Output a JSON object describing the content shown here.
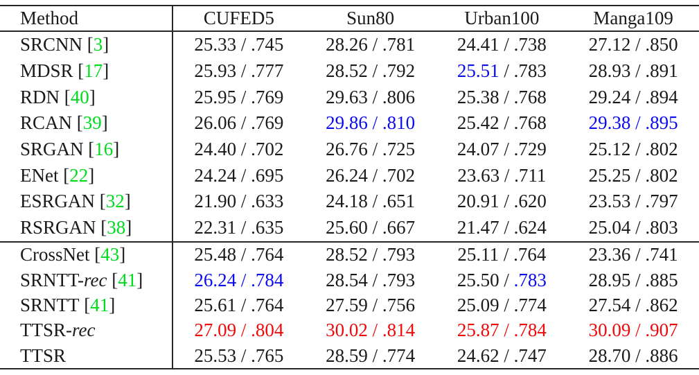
{
  "table": {
    "colors": {
      "black": "#1a1a1a",
      "blue": "#0b0bee",
      "red": "#ee0a0a",
      "green": "#00db1e"
    },
    "header": {
      "method": "Method",
      "datasets": [
        "CUFED5",
        "Sun80",
        "Urban100",
        "Manga109"
      ]
    },
    "sections": [
      {
        "rows": [
          {
            "method": {
              "base": "SRCNN",
              "italic": "",
              "cite": "3"
            },
            "cells": [
              {
                "psnr": "25.33",
                "ssim": ".745",
                "psnr_color": "black",
                "slash_color": "black",
                "ssim_color": "black"
              },
              {
                "psnr": "28.26",
                "ssim": ".781",
                "psnr_color": "black",
                "slash_color": "black",
                "ssim_color": "black"
              },
              {
                "psnr": "24.41",
                "ssim": ".738",
                "psnr_color": "black",
                "slash_color": "black",
                "ssim_color": "black"
              },
              {
                "psnr": "27.12",
                "ssim": ".850",
                "psnr_color": "black",
                "slash_color": "black",
                "ssim_color": "black"
              }
            ]
          },
          {
            "method": {
              "base": "MDSR",
              "italic": "",
              "cite": "17"
            },
            "cells": [
              {
                "psnr": "25.93",
                "ssim": ".777",
                "psnr_color": "black",
                "slash_color": "black",
                "ssim_color": "black"
              },
              {
                "psnr": "28.52",
                "ssim": ".792",
                "psnr_color": "black",
                "slash_color": "black",
                "ssim_color": "black"
              },
              {
                "psnr": "25.51",
                "ssim": ".783",
                "psnr_color": "blue",
                "slash_color": "black",
                "ssim_color": "black"
              },
              {
                "psnr": "28.93",
                "ssim": ".891",
                "psnr_color": "black",
                "slash_color": "black",
                "ssim_color": "black"
              }
            ]
          },
          {
            "method": {
              "base": "RDN",
              "italic": "",
              "cite": "40"
            },
            "cells": [
              {
                "psnr": "25.95",
                "ssim": ".769",
                "psnr_color": "black",
                "slash_color": "black",
                "ssim_color": "black"
              },
              {
                "psnr": "29.63",
                "ssim": ".806",
                "psnr_color": "black",
                "slash_color": "black",
                "ssim_color": "black"
              },
              {
                "psnr": "25.38",
                "ssim": ".768",
                "psnr_color": "black",
                "slash_color": "black",
                "ssim_color": "black"
              },
              {
                "psnr": "29.24",
                "ssim": ".894",
                "psnr_color": "black",
                "slash_color": "black",
                "ssim_color": "black"
              }
            ]
          },
          {
            "method": {
              "base": "RCAN",
              "italic": "",
              "cite": "39"
            },
            "cells": [
              {
                "psnr": "26.06",
                "ssim": ".769",
                "psnr_color": "black",
                "slash_color": "black",
                "ssim_color": "black"
              },
              {
                "psnr": "29.86",
                "ssim": ".810",
                "psnr_color": "blue",
                "slash_color": "blue",
                "ssim_color": "blue"
              },
              {
                "psnr": "25.42",
                "ssim": ".768",
                "psnr_color": "black",
                "slash_color": "black",
                "ssim_color": "black"
              },
              {
                "psnr": "29.38",
                "ssim": ".895",
                "psnr_color": "blue",
                "slash_color": "blue",
                "ssim_color": "blue"
              }
            ]
          },
          {
            "method": {
              "base": "SRGAN",
              "italic": "",
              "cite": "16"
            },
            "cells": [
              {
                "psnr": "24.40",
                "ssim": ".702",
                "psnr_color": "black",
                "slash_color": "black",
                "ssim_color": "black"
              },
              {
                "psnr": "26.76",
                "ssim": ".725",
                "psnr_color": "black",
                "slash_color": "black",
                "ssim_color": "black"
              },
              {
                "psnr": "24.07",
                "ssim": ".729",
                "psnr_color": "black",
                "slash_color": "black",
                "ssim_color": "black"
              },
              {
                "psnr": "25.12",
                "ssim": ".802",
                "psnr_color": "black",
                "slash_color": "black",
                "ssim_color": "black"
              }
            ]
          },
          {
            "method": {
              "base": "ENet",
              "italic": "",
              "cite": "22"
            },
            "cells": [
              {
                "psnr": "24.24",
                "ssim": ".695",
                "psnr_color": "black",
                "slash_color": "black",
                "ssim_color": "black"
              },
              {
                "psnr": "26.24",
                "ssim": ".702",
                "psnr_color": "black",
                "slash_color": "black",
                "ssim_color": "black"
              },
              {
                "psnr": "23.63",
                "ssim": ".711",
                "psnr_color": "black",
                "slash_color": "black",
                "ssim_color": "black"
              },
              {
                "psnr": "25.25",
                "ssim": ".802",
                "psnr_color": "black",
                "slash_color": "black",
                "ssim_color": "black"
              }
            ]
          },
          {
            "method": {
              "base": "ESRGAN",
              "italic": "",
              "cite": "32"
            },
            "cells": [
              {
                "psnr": "21.90",
                "ssim": ".633",
                "psnr_color": "black",
                "slash_color": "black",
                "ssim_color": "black"
              },
              {
                "psnr": "24.18",
                "ssim": ".651",
                "psnr_color": "black",
                "slash_color": "black",
                "ssim_color": "black"
              },
              {
                "psnr": "20.91",
                "ssim": ".620",
                "psnr_color": "black",
                "slash_color": "black",
                "ssim_color": "black"
              },
              {
                "psnr": "23.53",
                "ssim": ".797",
                "psnr_color": "black",
                "slash_color": "black",
                "ssim_color": "black"
              }
            ]
          },
          {
            "method": {
              "base": "RSRGAN",
              "italic": "",
              "cite": "38"
            },
            "cells": [
              {
                "psnr": "22.31",
                "ssim": ".635",
                "psnr_color": "black",
                "slash_color": "black",
                "ssim_color": "black"
              },
              {
                "psnr": "25.60",
                "ssim": ".667",
                "psnr_color": "black",
                "slash_color": "black",
                "ssim_color": "black"
              },
              {
                "psnr": "21.47",
                "ssim": ".624",
                "psnr_color": "black",
                "slash_color": "black",
                "ssim_color": "black"
              },
              {
                "psnr": "25.04",
                "ssim": ".803",
                "psnr_color": "black",
                "slash_color": "black",
                "ssim_color": "black"
              }
            ]
          }
        ]
      },
      {
        "rows": [
          {
            "method": {
              "base": "CrossNet",
              "italic": "",
              "cite": "43"
            },
            "cells": [
              {
                "psnr": "25.48",
                "ssim": ".764",
                "psnr_color": "black",
                "slash_color": "black",
                "ssim_color": "black"
              },
              {
                "psnr": "28.52",
                "ssim": ".793",
                "psnr_color": "black",
                "slash_color": "black",
                "ssim_color": "black"
              },
              {
                "psnr": "25.11",
                "ssim": ".764",
                "psnr_color": "black",
                "slash_color": "black",
                "ssim_color": "black"
              },
              {
                "psnr": "23.36",
                "ssim": ".741",
                "psnr_color": "black",
                "slash_color": "black",
                "ssim_color": "black"
              }
            ]
          },
          {
            "method": {
              "base": "SRNTT-",
              "italic": "rec",
              "cite": "41"
            },
            "cells": [
              {
                "psnr": "26.24",
                "ssim": ".784",
                "psnr_color": "blue",
                "slash_color": "blue",
                "ssim_color": "blue"
              },
              {
                "psnr": "28.54",
                "ssim": ".793",
                "psnr_color": "black",
                "slash_color": "black",
                "ssim_color": "black"
              },
              {
                "psnr": "25.50",
                "ssim": ".783",
                "psnr_color": "black",
                "slash_color": "black",
                "ssim_color": "blue"
              },
              {
                "psnr": "28.95",
                "ssim": ".885",
                "psnr_color": "black",
                "slash_color": "black",
                "ssim_color": "black"
              }
            ]
          },
          {
            "method": {
              "base": "SRNTT",
              "italic": "",
              "cite": "41"
            },
            "cells": [
              {
                "psnr": "25.61",
                "ssim": ".764",
                "psnr_color": "black",
                "slash_color": "black",
                "ssim_color": "black"
              },
              {
                "psnr": "27.59",
                "ssim": ".756",
                "psnr_color": "black",
                "slash_color": "black",
                "ssim_color": "black"
              },
              {
                "psnr": "25.09",
                "ssim": ".774",
                "psnr_color": "black",
                "slash_color": "black",
                "ssim_color": "black"
              },
              {
                "psnr": "27.54",
                "ssim": ".862",
                "psnr_color": "black",
                "slash_color": "black",
                "ssim_color": "black"
              }
            ]
          },
          {
            "method": {
              "base": "TTSR-",
              "italic": "rec",
              "cite": ""
            },
            "cells": [
              {
                "psnr": "27.09",
                "ssim": ".804",
                "psnr_color": "red",
                "slash_color": "red",
                "ssim_color": "red"
              },
              {
                "psnr": "30.02",
                "ssim": ".814",
                "psnr_color": "red",
                "slash_color": "red",
                "ssim_color": "red"
              },
              {
                "psnr": "25.87",
                "ssim": ".784",
                "psnr_color": "red",
                "slash_color": "red",
                "ssim_color": "red"
              },
              {
                "psnr": "30.09",
                "ssim": ".907",
                "psnr_color": "red",
                "slash_color": "red",
                "ssim_color": "red"
              }
            ]
          },
          {
            "method": {
              "base": "TTSR",
              "italic": "",
              "cite": ""
            },
            "cells": [
              {
                "psnr": "25.53",
                "ssim": ".765",
                "psnr_color": "black",
                "slash_color": "black",
                "ssim_color": "black"
              },
              {
                "psnr": "28.59",
                "ssim": ".774",
                "psnr_color": "black",
                "slash_color": "black",
                "ssim_color": "black"
              },
              {
                "psnr": "24.62",
                "ssim": ".747",
                "psnr_color": "black",
                "slash_color": "black",
                "ssim_color": "black"
              },
              {
                "psnr": "28.70",
                "ssim": ".886",
                "psnr_color": "black",
                "slash_color": "black",
                "ssim_color": "black"
              }
            ]
          }
        ]
      }
    ]
  }
}
